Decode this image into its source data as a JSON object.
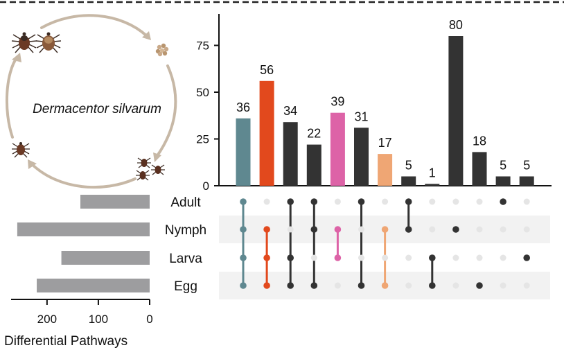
{
  "species_name": "Dermacentor silvarum",
  "chart_data": {
    "type": "upset",
    "sets": [
      "Adult",
      "Nymph",
      "Larva",
      "Egg"
    ],
    "set_sizes": {
      "values": [
        135,
        258,
        172,
        220
      ],
      "xlabel": "Differential Pathways",
      "xticks": [
        200,
        100,
        0
      ],
      "xlim": [
        0,
        270
      ]
    },
    "intersections": {
      "ylim": [
        0,
        90
      ],
      "yticks": [
        0,
        25,
        50,
        75
      ],
      "bars": [
        {
          "value": 36,
          "sets": [
            "Adult",
            "Nymph",
            "Larva",
            "Egg"
          ],
          "color": "#5f8890"
        },
        {
          "value": 56,
          "sets": [
            "Nymph",
            "Larva",
            "Egg"
          ],
          "color": "#e2491d"
        },
        {
          "value": 34,
          "sets": [
            "Adult",
            "Larva",
            "Egg"
          ],
          "color": "#333333"
        },
        {
          "value": 22,
          "sets": [
            "Adult",
            "Nymph",
            "Egg"
          ],
          "color": "#333333"
        },
        {
          "value": 39,
          "sets": [
            "Nymph",
            "Larva"
          ],
          "color": "#dd63a7"
        },
        {
          "value": 31,
          "sets": [
            "Adult",
            "Egg"
          ],
          "color": "#333333"
        },
        {
          "value": 17,
          "sets": [
            "Nymph",
            "Egg"
          ],
          "color": "#efa674"
        },
        {
          "value": 5,
          "sets": [
            "Adult",
            "Nymph"
          ],
          "color": "#333333"
        },
        {
          "value": 1,
          "sets": [
            "Larva",
            "Egg"
          ],
          "color": "#333333"
        },
        {
          "value": 80,
          "sets": [
            "Nymph"
          ],
          "color": "#333333"
        },
        {
          "value": 18,
          "sets": [
            "Egg"
          ],
          "color": "#333333"
        },
        {
          "value": 5,
          "sets": [
            "Adult"
          ],
          "color": "#333333"
        },
        {
          "value": 5,
          "sets": [
            "Larva"
          ],
          "color": "#333333"
        }
      ]
    },
    "colors": {
      "set_bar": "#9d9d9f",
      "inactive_dot": "#e5e5e5",
      "stripe": "#f2f2f2",
      "cycle_arrow": "#c7b8a6"
    }
  }
}
